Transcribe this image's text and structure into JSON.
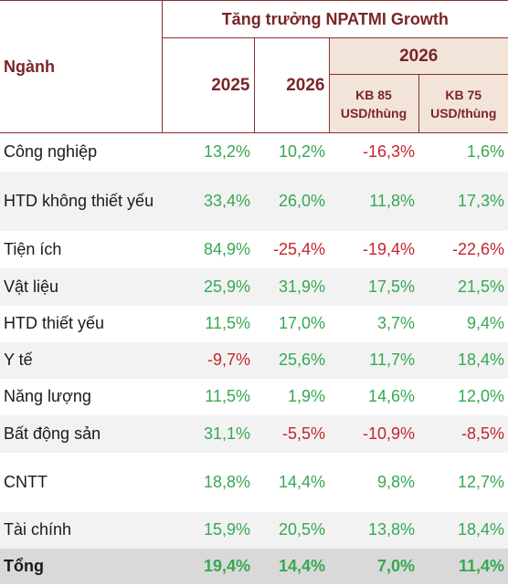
{
  "header": {
    "title": "Tăng trưởng NPATMI Growth",
    "sector": "Ngành",
    "year_a": "2025",
    "year_b": "2026",
    "year_c": "2026",
    "scenario_a": "KB 85 USD/thùng",
    "scenario_b": "KB 75 USD/thùng"
  },
  "table": {
    "rows": [
      [
        "Công nghiệp",
        "13,2%",
        "10,2%",
        "-16,3%",
        "1,6%"
      ],
      [
        "HTD không thiết yếu",
        "33,4%",
        "26,0%",
        "11,8%",
        "17,3%"
      ],
      [
        "Tiện ích",
        "84,9%",
        "-25,4%",
        "-19,4%",
        "-22,6%"
      ],
      [
        "Vật liệu",
        "25,9%",
        "31,9%",
        "17,5%",
        "21,5%"
      ],
      [
        "HTD thiết yếu",
        "11,5%",
        "17,0%",
        "3,7%",
        "9,4%"
      ],
      [
        "Y tế",
        "-9,7%",
        "25,6%",
        "11,7%",
        "18,4%"
      ],
      [
        "Năng lượng",
        "11,5%",
        "1,9%",
        "14,6%",
        "12,0%"
      ],
      [
        "Bất động sản",
        "31,1%",
        "-5,5%",
        "-10,9%",
        "-8,5%"
      ],
      [
        "CNTT",
        "18,8%",
        "14,4%",
        "9,8%",
        "12,7%"
      ],
      [
        "Tài chính",
        "15,9%",
        "20,5%",
        "13,8%",
        "18,4%"
      ]
    ],
    "total": [
      "Tổng",
      "19,4%",
      "14,4%",
      "7,0%",
      "11,4%"
    ]
  }
}
